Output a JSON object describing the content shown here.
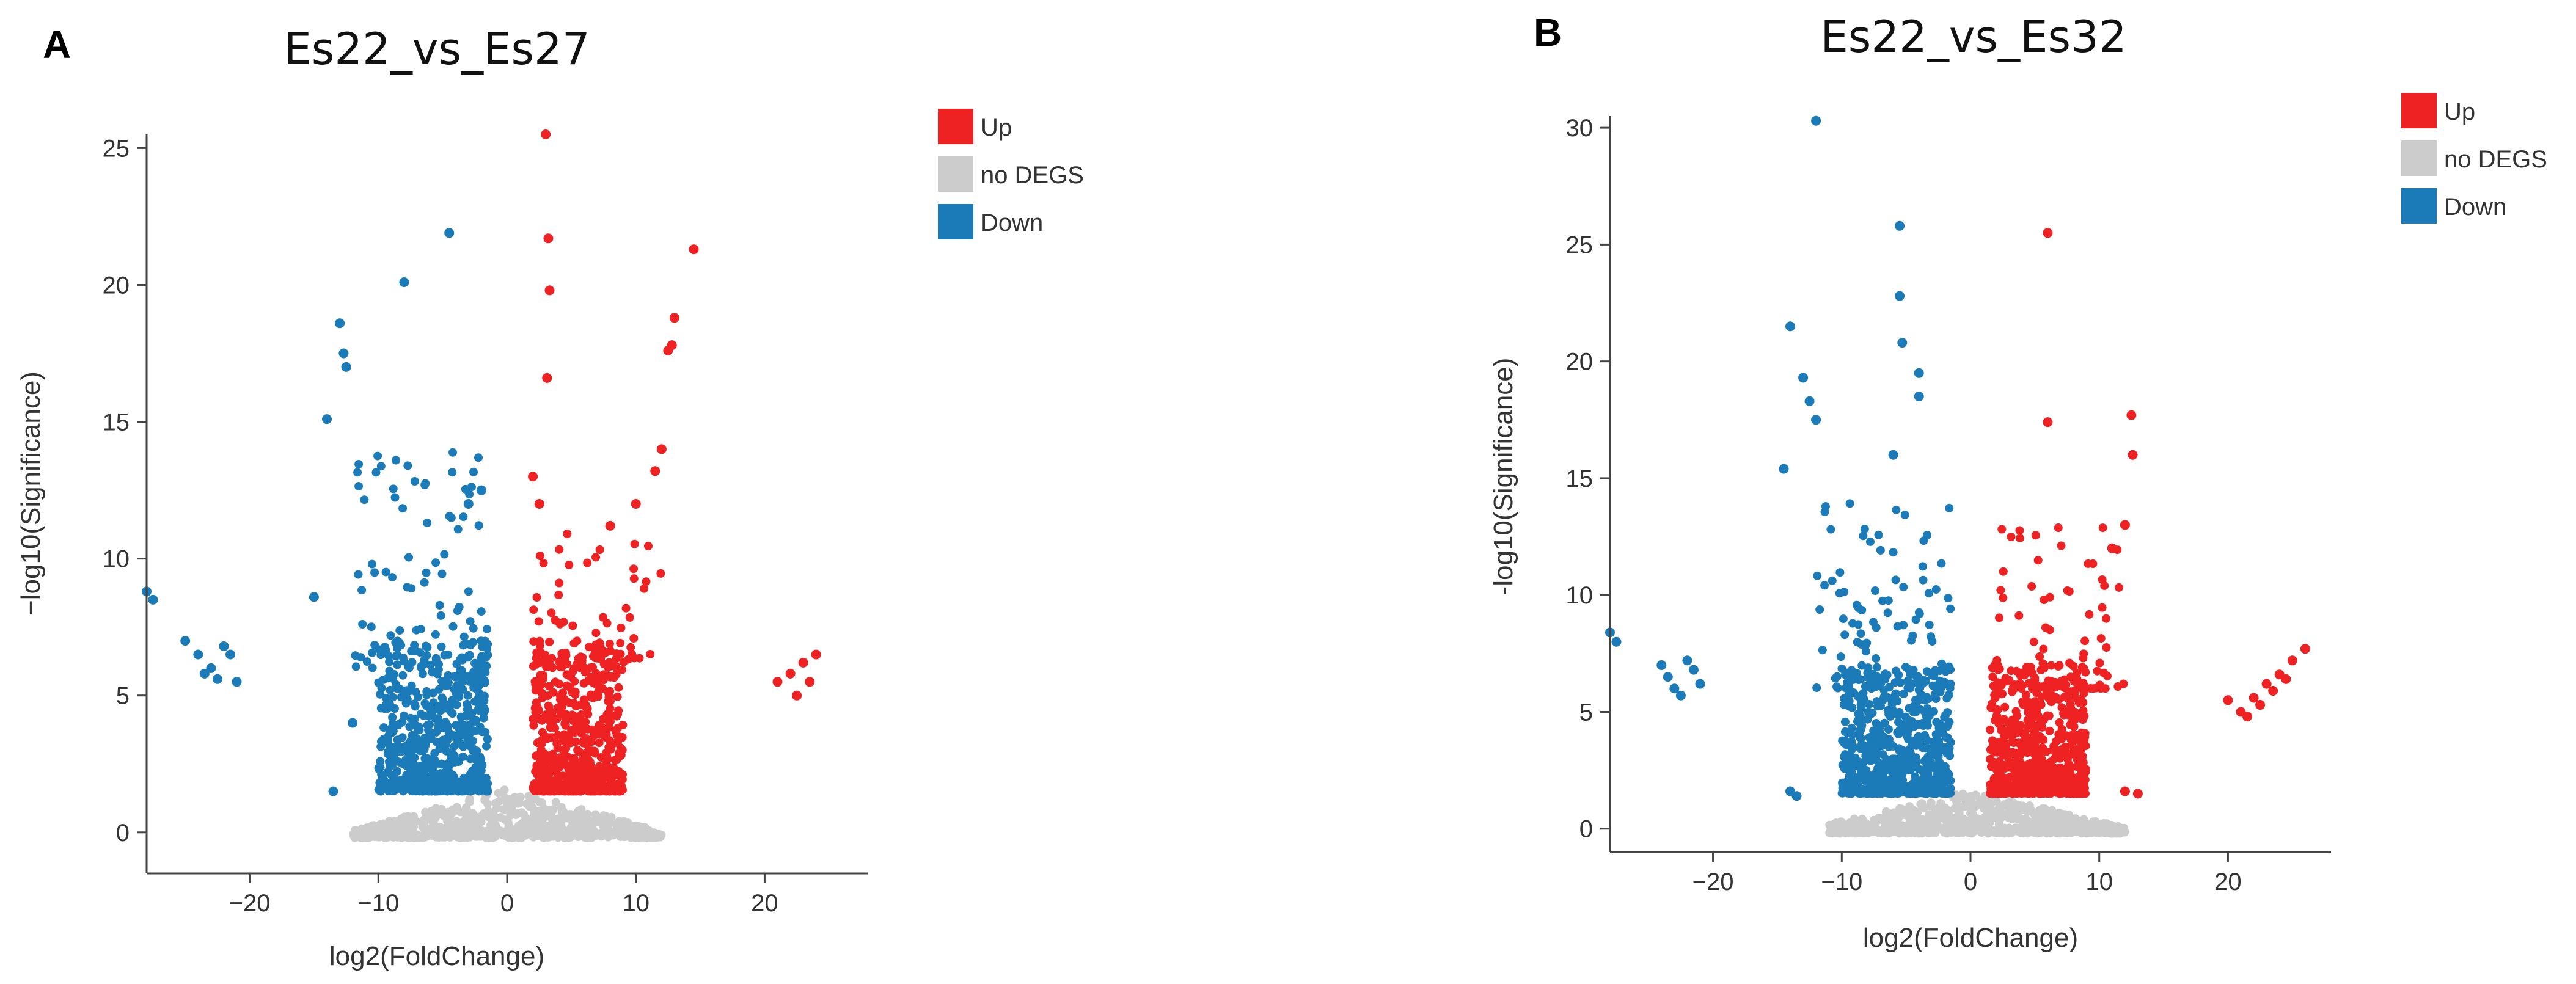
{
  "colors": {
    "up": "#EE2222",
    "no_degs": "#CCCCCC",
    "down": "#1B7AB8"
  },
  "chart_data": [
    {
      "type": "scatter",
      "panel_label": "A",
      "title": "Es22_vs_Es27",
      "xlabel": "log2(FoldChange)",
      "ylabel": "−log10(Significance)",
      "xlim": [
        -28,
        28
      ],
      "ylim": [
        -1.5,
        25.5
      ],
      "xticks": [
        -20,
        -10,
        0,
        10,
        20
      ],
      "yticks": [
        0,
        5,
        10,
        15,
        20,
        25
      ],
      "xtick_labels": [
        "−20",
        "−10",
        "0",
        "10",
        "20"
      ],
      "ytick_labels": [
        "0",
        "5",
        "10",
        "15",
        "20",
        "25"
      ],
      "legend": {
        "position": "top-right",
        "entries": [
          "Up",
          "no DEGS",
          "Down"
        ]
      },
      "series": [
        {
          "name": "Up",
          "points": [
            [
              3,
              25.5
            ],
            [
              3.2,
              21.7
            ],
            [
              3.3,
              19.8
            ],
            [
              3.1,
              16.6
            ],
            [
              14.5,
              21.3
            ],
            [
              13,
              18.8
            ],
            [
              12.8,
              17.8
            ],
            [
              12.5,
              17.6
            ],
            [
              12,
              14
            ],
            [
              11.5,
              13.2
            ],
            [
              2,
              13
            ],
            [
              2.5,
              12
            ],
            [
              10,
              12
            ],
            [
              8,
              11.2
            ],
            [
              21,
              5.5
            ],
            [
              22,
              5.8
            ],
            [
              23,
              6.2
            ],
            [
              24,
              6.5
            ],
            [
              22.5,
              5
            ],
            [
              23.5,
              5.5
            ]
          ],
          "clouds": [
            {
              "x": [
                2,
                9
              ],
              "y": [
                1.5,
                7
              ],
              "count": 600
            },
            {
              "x": [
                2,
                12
              ],
              "y": [
                6,
                11
              ],
              "count": 70
            }
          ]
        },
        {
          "name": "Down",
          "points": [
            [
              -4.5,
              21.9
            ],
            [
              -8,
              20.1
            ],
            [
              -13,
              18.6
            ],
            [
              -12.7,
              17.5
            ],
            [
              -12.5,
              17
            ],
            [
              -14,
              15.1
            ],
            [
              -15,
              8.6
            ],
            [
              -28,
              8.8
            ],
            [
              -27.5,
              8.5
            ],
            [
              -25,
              7
            ],
            [
              -24,
              6.5
            ],
            [
              -23,
              6
            ],
            [
              -22.5,
              5.6
            ],
            [
              -22,
              6.8
            ],
            [
              -21.5,
              6.5
            ],
            [
              -21,
              5.5
            ],
            [
              -23.5,
              5.8
            ],
            [
              -12,
              4
            ],
            [
              -13.5,
              1.5
            ],
            [
              -2,
              12.5
            ],
            [
              -3,
              12
            ]
          ],
          "clouds": [
            {
              "x": [
                -10,
                -1.5
              ],
              "y": [
                1.5,
                7
              ],
              "count": 600
            },
            {
              "x": [
                -12,
                -1.5
              ],
              "y": [
                6,
                14
              ],
              "count": 90
            }
          ]
        },
        {
          "name": "no DEGS",
          "clouds": [
            {
              "x": [
                -12,
                12
              ],
              "y": [
                -0.2,
                1.6
              ],
              "count": 700
            }
          ]
        }
      ]
    },
    {
      "type": "scatter",
      "panel_label": "B",
      "title": "Es22_vs_Es32",
      "xlabel": "log2(FoldChange)",
      "ylabel": "-log10(Significance)",
      "xlim": [
        -28,
        28
      ],
      "ylim": [
        -1,
        30.5
      ],
      "xticks": [
        -20,
        -10,
        0,
        10,
        20
      ],
      "yticks": [
        0,
        5,
        10,
        15,
        20,
        25,
        30
      ],
      "xtick_labels": [
        "−20",
        "−10",
        "0",
        "10",
        "20"
      ],
      "ytick_labels": [
        "0",
        "5",
        "10",
        "15",
        "20",
        "25",
        "30"
      ],
      "legend": {
        "position": "top-right",
        "entries": [
          "Up",
          "no DEGS",
          "Down"
        ]
      },
      "series": [
        {
          "name": "Up",
          "points": [
            [
              6,
              25.5
            ],
            [
              12.5,
              17.7
            ],
            [
              6,
              17.4
            ],
            [
              12.6,
              16
            ],
            [
              12,
              13
            ],
            [
              11,
              12
            ],
            [
              20,
              5.5
            ],
            [
              21,
              5
            ],
            [
              22,
              5.6
            ],
            [
              23,
              6.2
            ],
            [
              24,
              6.6
            ],
            [
              25,
              7.2
            ],
            [
              26,
              7.7
            ],
            [
              21.5,
              4.8
            ],
            [
              22.5,
              5.3
            ],
            [
              23.5,
              5.9
            ],
            [
              24.5,
              6.4
            ],
            [
              12,
              1.6
            ],
            [
              13,
              1.5
            ]
          ],
          "clouds": [
            {
              "x": [
                1.5,
                9
              ],
              "y": [
                1.5,
                7
              ],
              "count": 650
            },
            {
              "x": [
                1.5,
                12
              ],
              "y": [
                6,
                13
              ],
              "count": 90
            }
          ]
        },
        {
          "name": "Down",
          "points": [
            [
              -12,
              30.3
            ],
            [
              -5.5,
              25.8
            ],
            [
              -5.5,
              22.8
            ],
            [
              -14,
              21.5
            ],
            [
              -5.3,
              20.8
            ],
            [
              -4,
              19.5
            ],
            [
              -13,
              19.3
            ],
            [
              -12.5,
              18.3
            ],
            [
              -12,
              17.5
            ],
            [
              -4,
              18.5
            ],
            [
              -6,
              16
            ],
            [
              -14.5,
              15.4
            ],
            [
              -28,
              8.4
            ],
            [
              -27.5,
              8
            ],
            [
              -24,
              7
            ],
            [
              -23.5,
              6.5
            ],
            [
              -23,
              6
            ],
            [
              -22.5,
              5.7
            ],
            [
              -22,
              7.2
            ],
            [
              -21.5,
              6.8
            ],
            [
              -21,
              6.2
            ],
            [
              -14,
              1.6
            ],
            [
              -13.5,
              1.4
            ]
          ],
          "clouds": [
            {
              "x": [
                -10,
                -1.5
              ],
              "y": [
                1.5,
                7
              ],
              "count": 650
            },
            {
              "x": [
                -12,
                -1.5
              ],
              "y": [
                6,
                14
              ],
              "count": 100
            }
          ]
        },
        {
          "name": "no DEGS",
          "clouds": [
            {
              "x": [
                -11,
                12
              ],
              "y": [
                -0.2,
                1.6
              ],
              "count": 750
            }
          ]
        }
      ]
    }
  ]
}
